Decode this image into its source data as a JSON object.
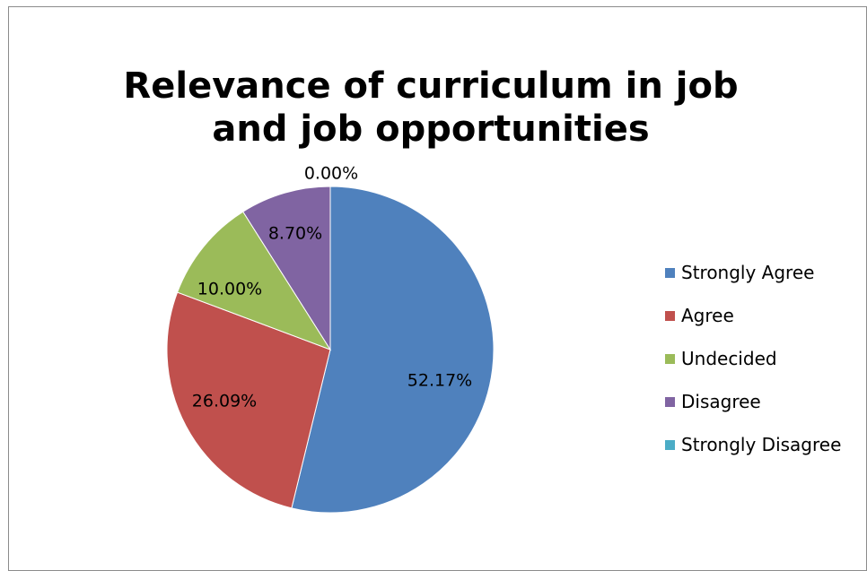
{
  "chart_data": {
    "type": "pie",
    "title": "Relevance of curriculum in job and job opportunities",
    "categories": [
      "Strongly Agree",
      "Agree",
      "Undecided",
      "Disagree",
      "Strongly Disagree"
    ],
    "values": [
      52.17,
      26.09,
      10.0,
      8.7,
      0.0
    ],
    "labels": [
      "52.17%",
      "26.09%",
      "10.00%",
      "8.70%",
      "0.00%"
    ],
    "colors": [
      "#4f81bd",
      "#c0504d",
      "#9bbb59",
      "#8064a2",
      "#4bacc6"
    ],
    "legend_position": "right",
    "start_angle": "top, clockwise"
  }
}
